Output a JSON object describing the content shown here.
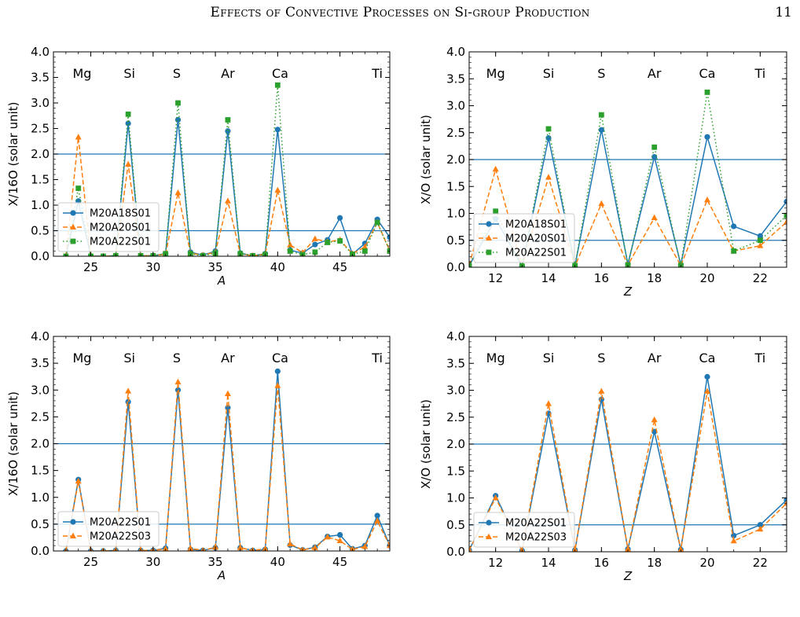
{
  "header": {
    "title": "Effects of Convective Processes on Si-group Production",
    "page_number": "11"
  },
  "colors": {
    "blue": "#1f77b4",
    "orange": "#ff7f0e",
    "green": "#2ca02c",
    "hline": "#1f77b4"
  },
  "chart_data": [
    {
      "type": "line",
      "panel": "top-left",
      "xlabel": "A",
      "ylabel": "X/16O (solar unit)",
      "xlim": [
        22,
        49
      ],
      "ylim": [
        0,
        4
      ],
      "xticks": [
        25,
        30,
        35,
        40,
        45
      ],
      "yticks": [
        0.0,
        0.5,
        1.0,
        1.5,
        2.0,
        2.5,
        3.0,
        3.5,
        4.0
      ],
      "hlines": [
        0.5,
        2.0
      ],
      "legend_position": "lower-left",
      "element_labels": [
        {
          "text": "Mg",
          "x": 24.3
        },
        {
          "text": "Si",
          "x": 28.1
        },
        {
          "text": "S",
          "x": 31.9
        },
        {
          "text": "Ar",
          "x": 36.0
        },
        {
          "text": "Ca",
          "x": 40.2
        },
        {
          "text": "Ti",
          "x": 48.0
        }
      ],
      "x": [
        23,
        24,
        25,
        26,
        27,
        28,
        29,
        30,
        31,
        32,
        33,
        34,
        35,
        36,
        37,
        38,
        39,
        40,
        41,
        42,
        43,
        44,
        45,
        46,
        47,
        48,
        49
      ],
      "series": [
        {
          "name": "M20A18S01",
          "color": "#1f77b4",
          "marker": "circle",
          "dash": "solid",
          "values": [
            0.0,
            1.08,
            0.0,
            0.0,
            0.01,
            2.6,
            0.01,
            0.01,
            0.05,
            2.67,
            0.08,
            0.02,
            0.1,
            2.45,
            0.06,
            0.01,
            0.05,
            2.48,
            0.12,
            0.06,
            0.23,
            0.32,
            0.75,
            0.04,
            0.25,
            0.72,
            0.37
          ]
        },
        {
          "name": "M20A20S01",
          "color": "#ff7f0e",
          "marker": "triangle",
          "dash": "dashed",
          "values": [
            0.0,
            2.33,
            0.0,
            0.0,
            0.01,
            1.8,
            0.01,
            0.01,
            0.04,
            1.24,
            0.06,
            0.02,
            0.08,
            1.08,
            0.05,
            0.01,
            0.04,
            1.29,
            0.22,
            0.07,
            0.34,
            0.28,
            0.32,
            0.05,
            0.18,
            0.66,
            0.11
          ]
        },
        {
          "name": "M20A22S01",
          "color": "#2ca02c",
          "marker": "square",
          "dash": "dotted",
          "values": [
            0.0,
            1.33,
            0.0,
            0.0,
            0.01,
            2.78,
            0.01,
            0.01,
            0.05,
            3.0,
            0.05,
            0.01,
            0.06,
            2.67,
            0.05,
            0.01,
            0.03,
            3.35,
            0.1,
            0.03,
            0.08,
            0.27,
            0.3,
            0.04,
            0.1,
            0.66,
            0.1
          ]
        }
      ]
    },
    {
      "type": "line",
      "panel": "top-right",
      "xlabel": "Z",
      "ylabel": "X/O (solar unit)",
      "xlim": [
        11,
        23
      ],
      "ylim": [
        0,
        4
      ],
      "xticks": [
        12,
        14,
        16,
        18,
        20,
        22
      ],
      "yticks": [
        0.0,
        0.5,
        1.0,
        1.5,
        2.0,
        2.5,
        3.0,
        3.5,
        4.0
      ],
      "hlines": [
        0.5,
        2.0
      ],
      "legend_position": "lower-left",
      "element_labels": [
        {
          "text": "Mg",
          "x": 12
        },
        {
          "text": "Si",
          "x": 14
        },
        {
          "text": "S",
          "x": 16
        },
        {
          "text": "Ar",
          "x": 18
        },
        {
          "text": "Ca",
          "x": 20
        },
        {
          "text": "Ti",
          "x": 22
        }
      ],
      "x": [
        11,
        12,
        13,
        14,
        15,
        16,
        17,
        18,
        19,
        20,
        21,
        22,
        23
      ],
      "series": [
        {
          "name": "M20A18S01",
          "color": "#1f77b4",
          "marker": "circle",
          "dash": "solid",
          "values": [
            0.03,
            0.9,
            0.02,
            2.4,
            0.03,
            2.55,
            0.06,
            2.05,
            0.05,
            2.42,
            0.76,
            0.58,
            1.22
          ]
        },
        {
          "name": "M20A20S01",
          "color": "#ff7f0e",
          "marker": "triangle",
          "dash": "dashed",
          "values": [
            0.04,
            1.82,
            0.02,
            1.67,
            0.02,
            1.18,
            0.04,
            0.92,
            0.03,
            1.25,
            0.3,
            0.4,
            0.84
          ]
        },
        {
          "name": "M20A22S01",
          "color": "#2ca02c",
          "marker": "square",
          "dash": "dotted",
          "values": [
            0.03,
            1.04,
            0.02,
            2.57,
            0.03,
            2.83,
            0.04,
            2.23,
            0.03,
            3.25,
            0.3,
            0.5,
            0.96
          ]
        }
      ]
    },
    {
      "type": "line",
      "panel": "bottom-left",
      "xlabel": "A",
      "ylabel": "X/16O (solar unit)",
      "xlim": [
        22,
        49
      ],
      "ylim": [
        0,
        4
      ],
      "xticks": [
        25,
        30,
        35,
        40,
        45
      ],
      "yticks": [
        0.0,
        0.5,
        1.0,
        1.5,
        2.0,
        2.5,
        3.0,
        3.5,
        4.0
      ],
      "hlines": [
        0.5,
        2.0
      ],
      "legend_position": "lower-left",
      "element_labels": [
        {
          "text": "Mg",
          "x": 24.3
        },
        {
          "text": "Si",
          "x": 28.1
        },
        {
          "text": "S",
          "x": 31.9
        },
        {
          "text": "Ar",
          "x": 36.0
        },
        {
          "text": "Ca",
          "x": 40.2
        },
        {
          "text": "Ti",
          "x": 48.0
        }
      ],
      "x": [
        23,
        24,
        25,
        26,
        27,
        28,
        29,
        30,
        31,
        32,
        33,
        34,
        35,
        36,
        37,
        38,
        39,
        40,
        41,
        42,
        43,
        44,
        45,
        46,
        47,
        48,
        49
      ],
      "series": [
        {
          "name": "M20A22S01",
          "color": "#1f77b4",
          "marker": "circle",
          "dash": "solid",
          "values": [
            0.0,
            1.33,
            0.0,
            0.0,
            0.01,
            2.78,
            0.01,
            0.01,
            0.05,
            3.0,
            0.03,
            0.01,
            0.06,
            2.67,
            0.06,
            0.01,
            0.03,
            3.35,
            0.11,
            0.02,
            0.07,
            0.27,
            0.3,
            0.04,
            0.1,
            0.66,
            0.1
          ]
        },
        {
          "name": "M20A22S03",
          "color": "#ff7f0e",
          "marker": "triangle",
          "dash": "dashed",
          "values": [
            0.0,
            1.3,
            0.0,
            0.0,
            0.01,
            2.98,
            0.01,
            0.01,
            0.04,
            3.15,
            0.05,
            0.01,
            0.07,
            2.93,
            0.06,
            0.01,
            0.04,
            3.08,
            0.13,
            0.02,
            0.06,
            0.26,
            0.19,
            0.03,
            0.08,
            0.56,
            0.1
          ]
        }
      ]
    },
    {
      "type": "line",
      "panel": "bottom-right",
      "xlabel": "Z",
      "ylabel": "X/O (solar unit)",
      "xlim": [
        11,
        23
      ],
      "ylim": [
        0,
        4
      ],
      "xticks": [
        12,
        14,
        16,
        18,
        20,
        22
      ],
      "yticks": [
        0.0,
        0.5,
        1.0,
        1.5,
        2.0,
        2.5,
        3.0,
        3.5,
        4.0
      ],
      "hlines": [
        0.5,
        2.0
      ],
      "legend_position": "lower-left",
      "element_labels": [
        {
          "text": "Mg",
          "x": 12
        },
        {
          "text": "Si",
          "x": 14
        },
        {
          "text": "S",
          "x": 16
        },
        {
          "text": "Ar",
          "x": 18
        },
        {
          "text": "Ca",
          "x": 20
        },
        {
          "text": "Ti",
          "x": 22
        }
      ],
      "x": [
        11,
        12,
        13,
        14,
        15,
        16,
        17,
        18,
        19,
        20,
        21,
        22,
        23
      ],
      "series": [
        {
          "name": "M20A22S01",
          "color": "#1f77b4",
          "marker": "circle",
          "dash": "solid",
          "values": [
            0.03,
            1.04,
            0.02,
            2.57,
            0.03,
            2.83,
            0.05,
            2.23,
            0.04,
            3.25,
            0.3,
            0.5,
            0.96
          ]
        },
        {
          "name": "M20A22S03",
          "color": "#ff7f0e",
          "marker": "triangle",
          "dash": "dashed",
          "values": [
            0.03,
            1.0,
            0.02,
            2.75,
            0.03,
            2.98,
            0.05,
            2.45,
            0.04,
            2.98,
            0.2,
            0.42,
            0.9
          ]
        }
      ]
    }
  ]
}
